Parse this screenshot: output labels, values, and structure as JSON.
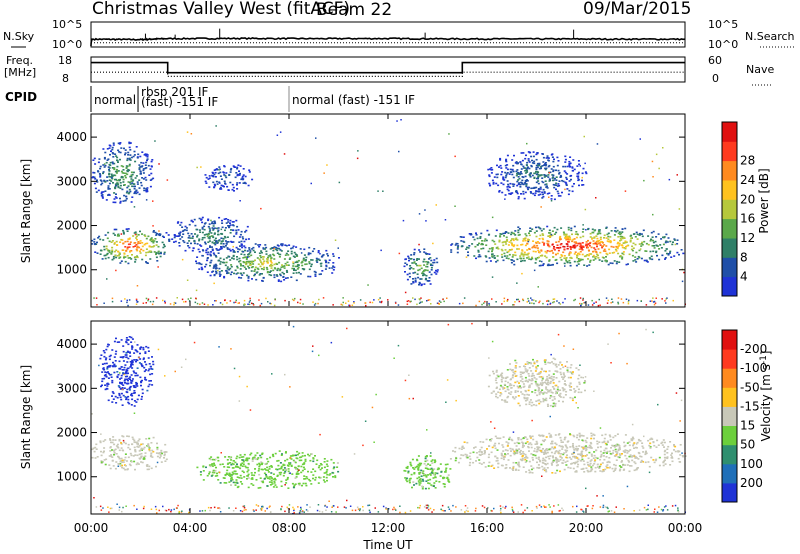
{
  "header": {
    "station": "Christmas Valley West (fitACF)",
    "beam": "Beam 22",
    "date": "09/Mar/2015"
  },
  "noise_panel": {
    "left_label": "N.Sky",
    "right_label": "N.Search",
    "left_ticks": [
      "10^5",
      "10^0"
    ],
    "right_ticks": [
      "10^5",
      "10^0"
    ]
  },
  "freq_panel": {
    "left_label_line1": "Freq.",
    "left_label_line2": "[MHz]",
    "right_label": "Nave",
    "left_ticks": [
      "18",
      "8"
    ],
    "right_ticks": [
      "60",
      "0"
    ]
  },
  "cpid": {
    "label": "CPID",
    "segments": [
      {
        "start_h": 0.0,
        "end_h": 1.9,
        "line1": "normal",
        "line2": ""
      },
      {
        "start_h": 1.9,
        "end_h": 8.0,
        "line1": "rbsp 201 IF",
        "line2": "(fast) -151 IF"
      },
      {
        "start_h": 8.0,
        "end_h": 24.0,
        "line1": "normal (fast) -151 IF",
        "line2": ""
      }
    ]
  },
  "x_axis": {
    "label": "Time UT",
    "ticks": [
      "00:00",
      "04:00",
      "08:00",
      "12:00",
      "16:00",
      "20:00",
      "00:00"
    ]
  },
  "power_panel": {
    "ylabel": "Slant Range [km]",
    "yticks": [
      "1000",
      "2000",
      "3000",
      "4000"
    ],
    "colorbar_label": "Power [dB]",
    "colorbar_ticks": [
      "4",
      "8",
      "12",
      "16",
      "20",
      "24",
      "28"
    ],
    "colors": [
      "#1f33d6",
      "#1f4fa8",
      "#2f7f67",
      "#5aa84a",
      "#b6c83c",
      "#ffc21f",
      "#ff8a1f",
      "#ff3a1f",
      "#e01010"
    ]
  },
  "velocity_panel": {
    "ylabel": "Slant Range [km]",
    "yticks": [
      "1000",
      "2000",
      "3000",
      "4000"
    ],
    "colorbar_label": "Velocity [m s",
    "colorbar_label_sup": "-1",
    "colorbar_label_end": "]",
    "colorbar_ticks": [
      "200",
      "100",
      "50",
      "15",
      "-15",
      "-50",
      "-100",
      "-200"
    ],
    "colors": [
      "#1f33d6",
      "#1f6fb8",
      "#2f8f6f",
      "#6ccf3c",
      "#c8c8b8",
      "#ffc21f",
      "#ff8a1f",
      "#ff3a1f",
      "#e01010"
    ]
  },
  "chart_data": [
    {
      "type": "line",
      "title": "Christmas Valley West (fitACF) Beam 22",
      "xlabel": "Time UT",
      "xlim": [
        0,
        24
      ],
      "ylabel": "N.Sky",
      "y_scale": "log",
      "ylim": [
        1,
        100000
      ],
      "series": [
        {
          "name": "N.Sky",
          "x": [
            0,
            0.05,
            2,
            3,
            6,
            9,
            12,
            15,
            18,
            21,
            24
          ],
          "y": [
            1,
            30,
            25,
            40,
            45,
            40,
            42,
            35,
            35,
            32,
            30
          ]
        },
        {
          "name": "N.Search",
          "x": [
            0,
            6,
            12,
            18,
            24
          ],
          "y": [
            5,
            5,
            5,
            5,
            5
          ]
        }
      ]
    },
    {
      "type": "line",
      "ylabel": "Freq. [MHz]",
      "xlim": [
        0,
        24
      ],
      "ylim": [
        8,
        18
      ],
      "y2label": "Nave",
      "y2lim": [
        0,
        60
      ],
      "series": [
        {
          "name": "Freq.",
          "x": [
            0,
            3.1,
            3.1,
            15.0,
            15.0,
            24
          ],
          "y": [
            16.0,
            16.0,
            11.6,
            11.6,
            16.0,
            16.0
          ]
        },
        {
          "name": "Nave",
          "x": [
            0,
            3.1,
            3.1,
            15.0,
            15.0,
            24
          ],
          "y": [
            23,
            23,
            12,
            12,
            23,
            23
          ]
        }
      ]
    },
    {
      "type": "heatmap",
      "variable": "Power [dB]",
      "xlim": [
        0,
        24
      ],
      "ylabel": "Slant Range [km]",
      "ylim": [
        180,
        4500
      ],
      "colorbar_ticks": [
        4,
        8,
        12,
        16,
        20,
        24,
        28
      ],
      "regions": [
        {
          "x": [
            0,
            3.2
          ],
          "y": [
            1150,
            1950
          ],
          "peak": 26
        },
        {
          "x": [
            0,
            2.5
          ],
          "y": [
            2500,
            3900
          ],
          "peak": 12
        },
        {
          "x": [
            3.0,
            6.5
          ],
          "y": [
            1400,
            2200
          ],
          "peak": 10
        },
        {
          "x": [
            4.2,
            10.0
          ],
          "y": [
            750,
            1600
          ],
          "peak": 16
        },
        {
          "x": [
            4.5,
            6.5
          ],
          "y": [
            2800,
            3400
          ],
          "peak": 6
        },
        {
          "x": [
            12.6,
            14.0
          ],
          "y": [
            650,
            1500
          ],
          "peak": 14
        },
        {
          "x": [
            14.5,
            24.0
          ],
          "y": [
            1100,
            2000
          ],
          "peak": 28
        },
        {
          "x": [
            16.0,
            20.0
          ],
          "y": [
            2600,
            3700
          ],
          "peak": 8
        }
      ]
    },
    {
      "type": "heatmap",
      "variable": "Velocity [m s-1]",
      "xlim": [
        0,
        24
      ],
      "ylabel": "Slant Range [km]",
      "ylim": [
        180,
        4500
      ],
      "colorbar_ticks": [
        200,
        100,
        50,
        15,
        -15,
        -50,
        -100,
        -200
      ],
      "regions": [
        {
          "x": [
            0,
            3.2
          ],
          "y": [
            1150,
            1950
          ],
          "v": 0
        },
        {
          "x": [
            0.3,
            2.5
          ],
          "y": [
            2600,
            4200
          ],
          "v": 150
        },
        {
          "x": [
            4.2,
            10.0
          ],
          "y": [
            750,
            1600
          ],
          "v": 40
        },
        {
          "x": [
            12.6,
            14.5
          ],
          "y": [
            650,
            1500
          ],
          "v": 40
        },
        {
          "x": [
            14.5,
            24.0
          ],
          "y": [
            1100,
            2000
          ],
          "v": 0
        },
        {
          "x": [
            16.0,
            20.0
          ],
          "y": [
            2600,
            3700
          ],
          "v": 0
        }
      ]
    }
  ]
}
